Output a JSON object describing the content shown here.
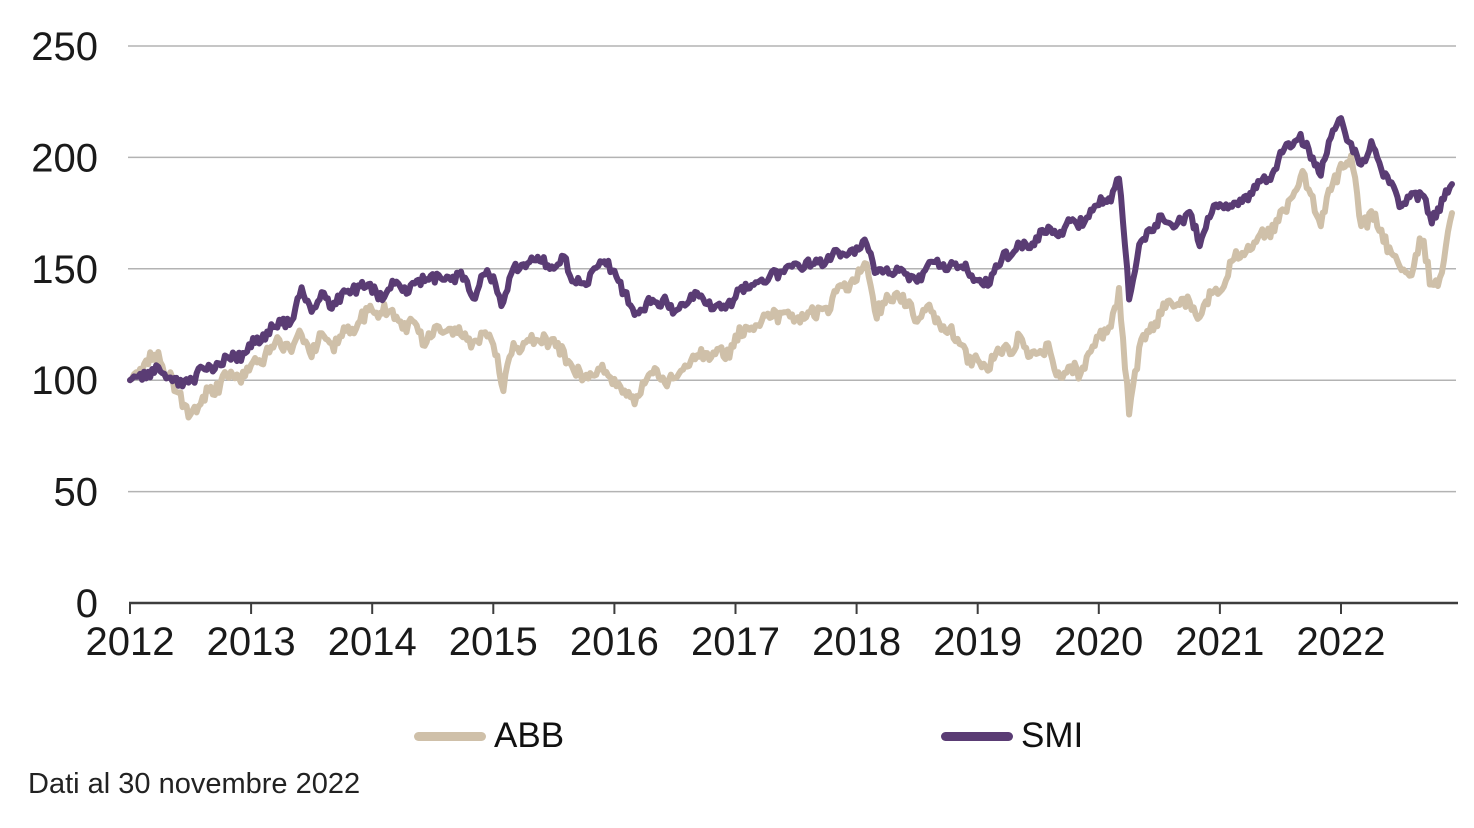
{
  "chart_data": {
    "type": "line",
    "title": "",
    "x_tick_labels": [
      "2012",
      "2013",
      "2014",
      "2015",
      "2016",
      "2017",
      "2018",
      "2019",
      "2020",
      "2021",
      "2022"
    ],
    "y_ticks": [
      0,
      50,
      100,
      150,
      200,
      250
    ],
    "ylim": [
      0,
      250
    ],
    "x_start": "2011-12",
    "x_end": "2022-11",
    "x_frequency": "monthly",
    "grid": "horizontal",
    "legend_position": "bottom",
    "axis_color": "#3d3d3d",
    "grid_color": "#b3b3b3",
    "text_color": "#1a1a1a",
    "series": [
      {
        "name": "ABB",
        "color": "#cfc0a9",
        "values": [
          100,
          104,
          112,
          108,
          102,
          90,
          85,
          90,
          95,
          99,
          101,
          102,
          106,
          110,
          114,
          117,
          114,
          119,
          113,
          118,
          116,
          120,
          124,
          128,
          130,
          133,
          129,
          126,
          124,
          119,
          122,
          119,
          124,
          120,
          116,
          121,
          119,
          96,
          115,
          118,
          116,
          120,
          115,
          112,
          103,
          100,
          105,
          102,
          101,
          93,
          92,
          100,
          104,
          100,
          98,
          106,
          110,
          112,
          113,
          110,
          119,
          122,
          125,
          128,
          130,
          128,
          127,
          131,
          128,
          133,
          139,
          142,
          147,
          153,
          131,
          134,
          139,
          133,
          129,
          131,
          127,
          124,
          117,
          112,
          107,
          108,
          113,
          112,
          119,
          110,
          112,
          114,
          102,
          105,
          103,
          112,
          118,
          124,
          137,
          88,
          112,
          122,
          130,
          136,
          137,
          134,
          129,
          138,
          141,
          152,
          156,
          160,
          164,
          168,
          172,
          179,
          194,
          182,
          171,
          185,
          196,
          200,
          170,
          175,
          166,
          158,
          146,
          150,
          163,
          141,
          148,
          175
        ]
      },
      {
        "name": "SMI",
        "color": "#5a3c74",
        "values": [
          100,
          102,
          104,
          105,
          103,
          97,
          100,
          104,
          106,
          108,
          110,
          112,
          115,
          120,
          123,
          126,
          127,
          140,
          131,
          137,
          134,
          138,
          141,
          143,
          140,
          139,
          143,
          141,
          142,
          145,
          146,
          144,
          147,
          146,
          137,
          147,
          145,
          134,
          150,
          153,
          152,
          155,
          150,
          156,
          144,
          143,
          150,
          153,
          149,
          138,
          129,
          133,
          135,
          137,
          129,
          136,
          138,
          136,
          134,
          132,
          139,
          140,
          143,
          145,
          148,
          152,
          151,
          153,
          151,
          155,
          156,
          157,
          158,
          161,
          149,
          147,
          151,
          145,
          145,
          153,
          152,
          152,
          150,
          152,
          142,
          145,
          152,
          156,
          161,
          158,
          166,
          167,
          165,
          170,
          170,
          175,
          179,
          181,
          190,
          139,
          161,
          166,
          173,
          169,
          172,
          173,
          163,
          174,
          177,
          179,
          178,
          185,
          188,
          191,
          201,
          205,
          209,
          200,
          195,
          208,
          218,
          205,
          196,
          207,
          194,
          189,
          176,
          186,
          182,
          172,
          180,
          188
        ]
      }
    ]
  },
  "legend": {
    "abb_label": "ABB",
    "smi_label": "SMI"
  },
  "footer": {
    "note": "Dati al 30 novembre 2022"
  }
}
